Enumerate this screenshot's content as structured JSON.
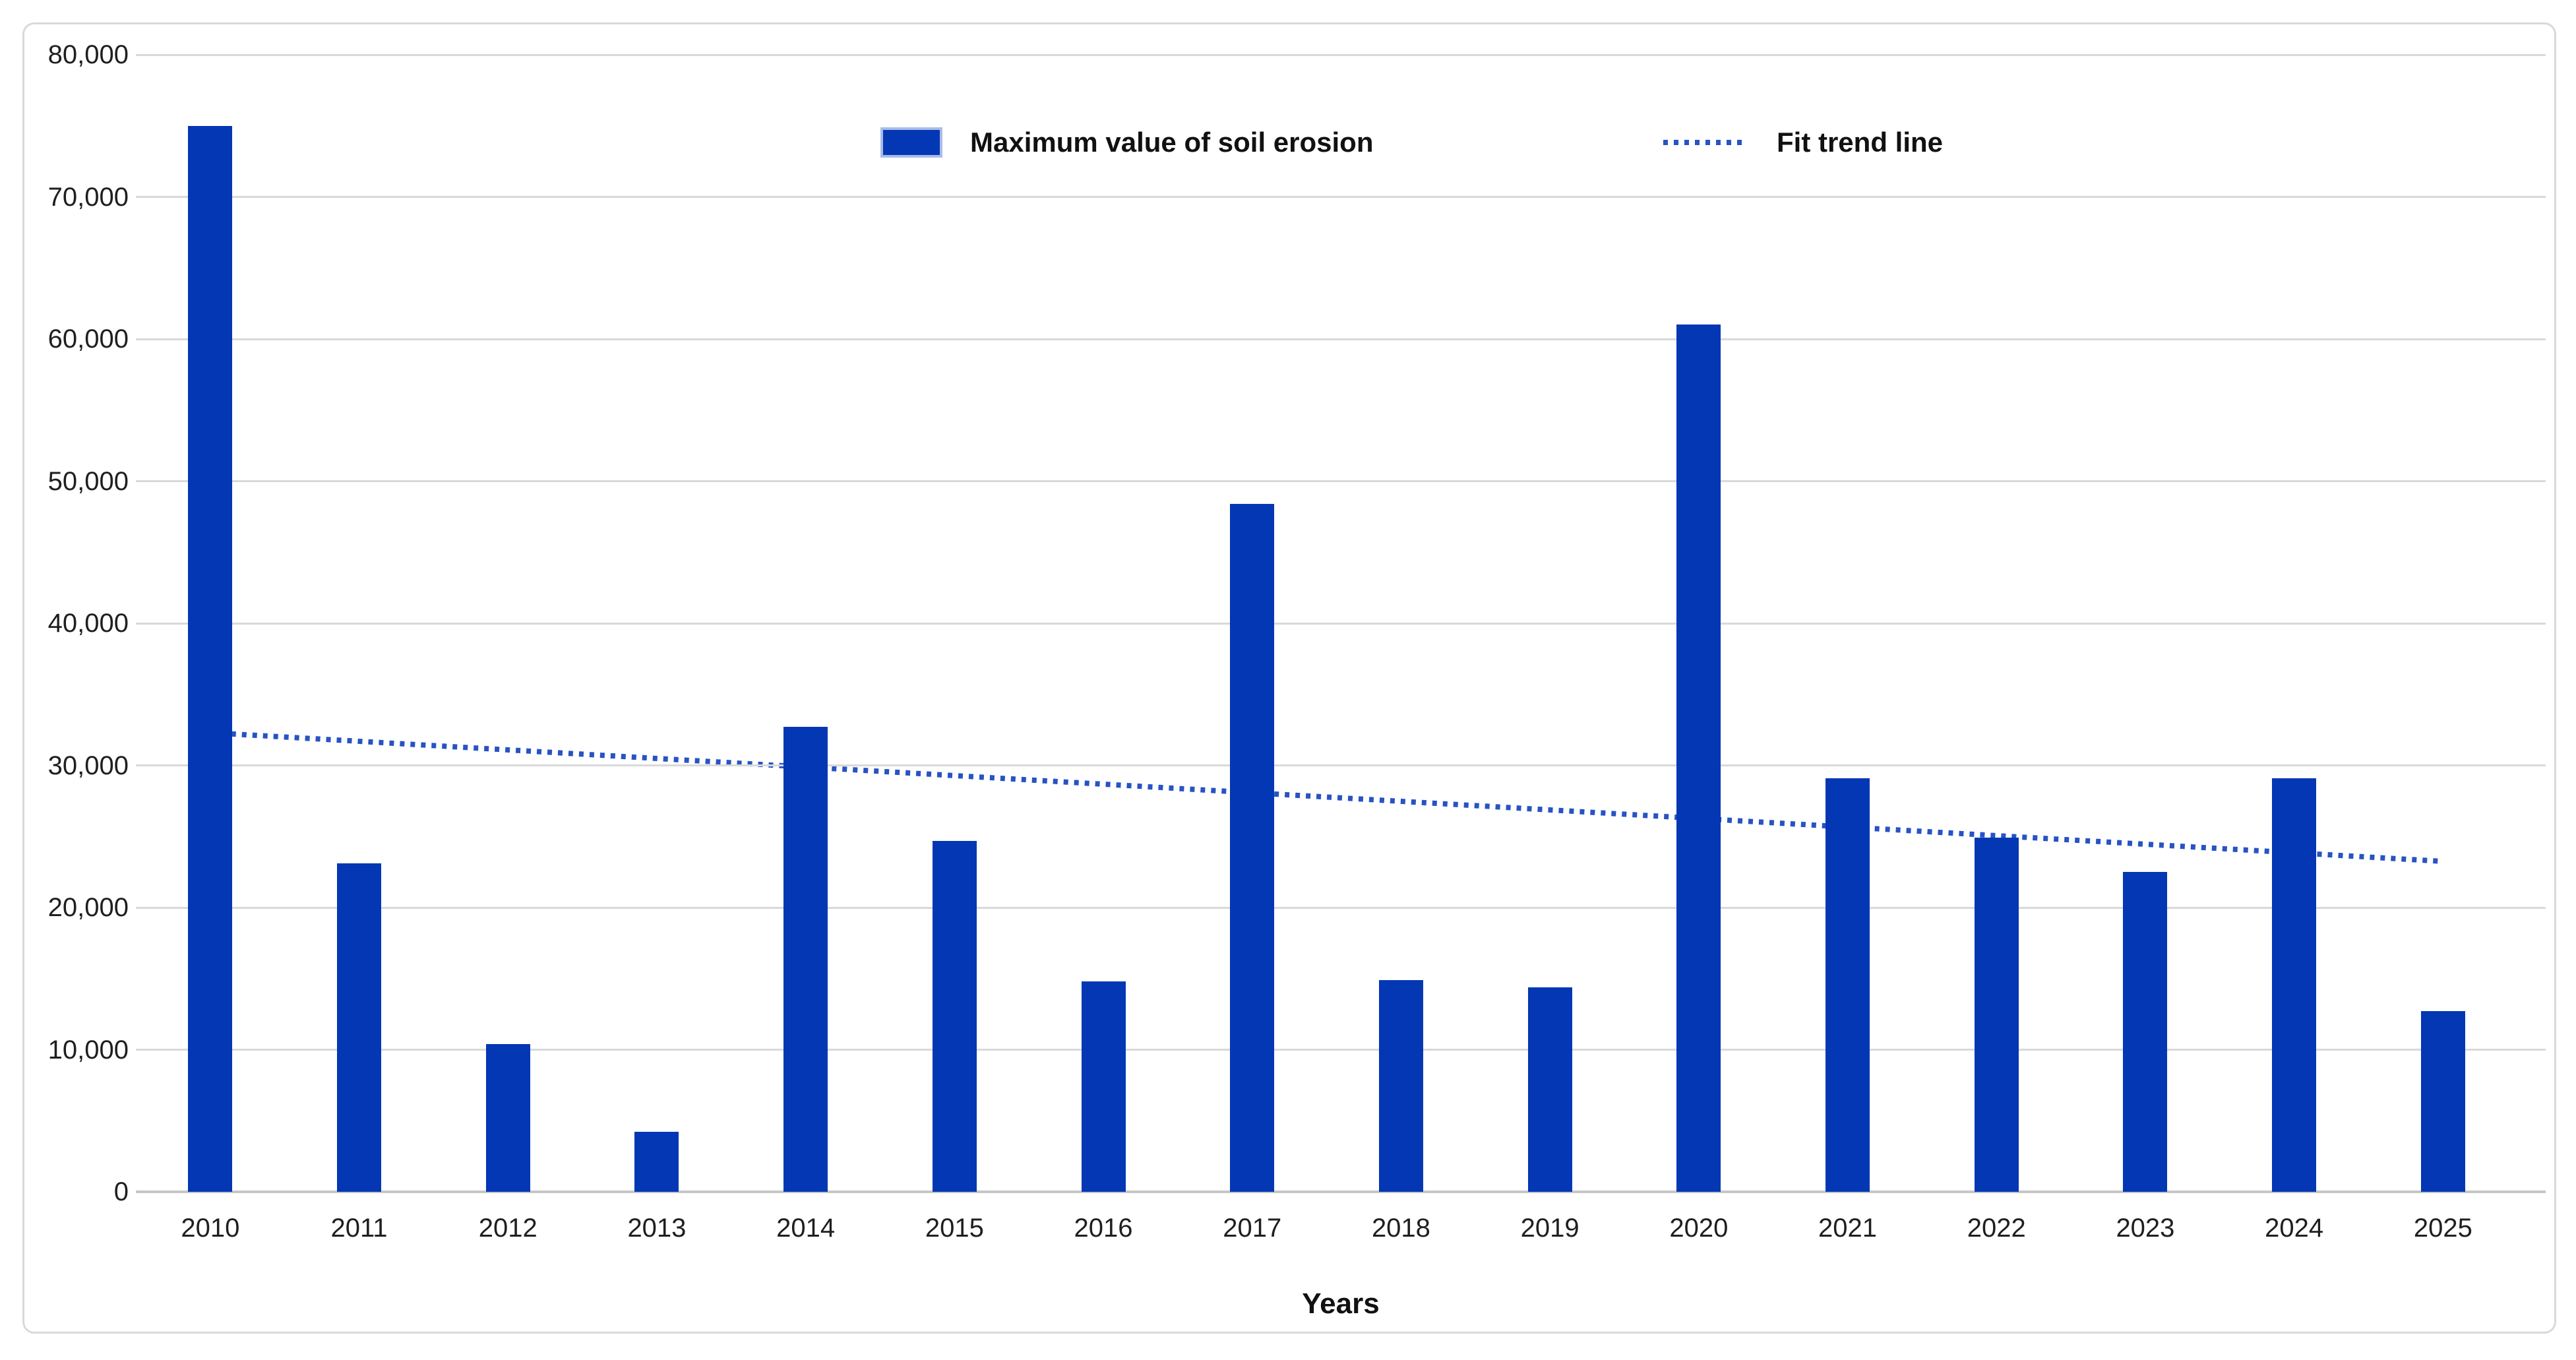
{
  "chart_data": {
    "type": "bar",
    "title": "",
    "xlabel": "Years",
    "ylabel": "",
    "categories": [
      "2010",
      "2011",
      "2012",
      "2013",
      "2014",
      "2015",
      "2016",
      "2017",
      "2018",
      "2019",
      "2020",
      "2021",
      "2022",
      "2023",
      "2024",
      "2025"
    ],
    "series": [
      {
        "name": "Maximum value of soil erosion",
        "values": [
          75000,
          23100,
          10400,
          4200,
          32700,
          24700,
          14800,
          48400,
          14900,
          14400,
          61000,
          29100,
          24900,
          22500,
          29100,
          12700
        ]
      }
    ],
    "trend": {
      "name": "Fit trend line",
      "style": "dotted",
      "start_value": 32300,
      "end_value": 23250
    },
    "ylim": [
      0,
      80000
    ],
    "ytick_interval": 10000,
    "ytick_labels": [
      "0",
      "10,000",
      "20,000",
      "30,000",
      "40,000",
      "50,000",
      "60,000",
      "70,000",
      "80,000"
    ],
    "grid": true,
    "legend_position": "top-center"
  },
  "colors": {
    "bar": "#0337b4",
    "trend": "#2753c3",
    "grid": "#d9d9d9",
    "axis_line": "#c6c6c6",
    "text": "#1f1f1f",
    "legend_text": "#111111",
    "swatch_border": "#a9bce8",
    "chart_border": "#d9d9d9",
    "background": "#ffffff"
  }
}
